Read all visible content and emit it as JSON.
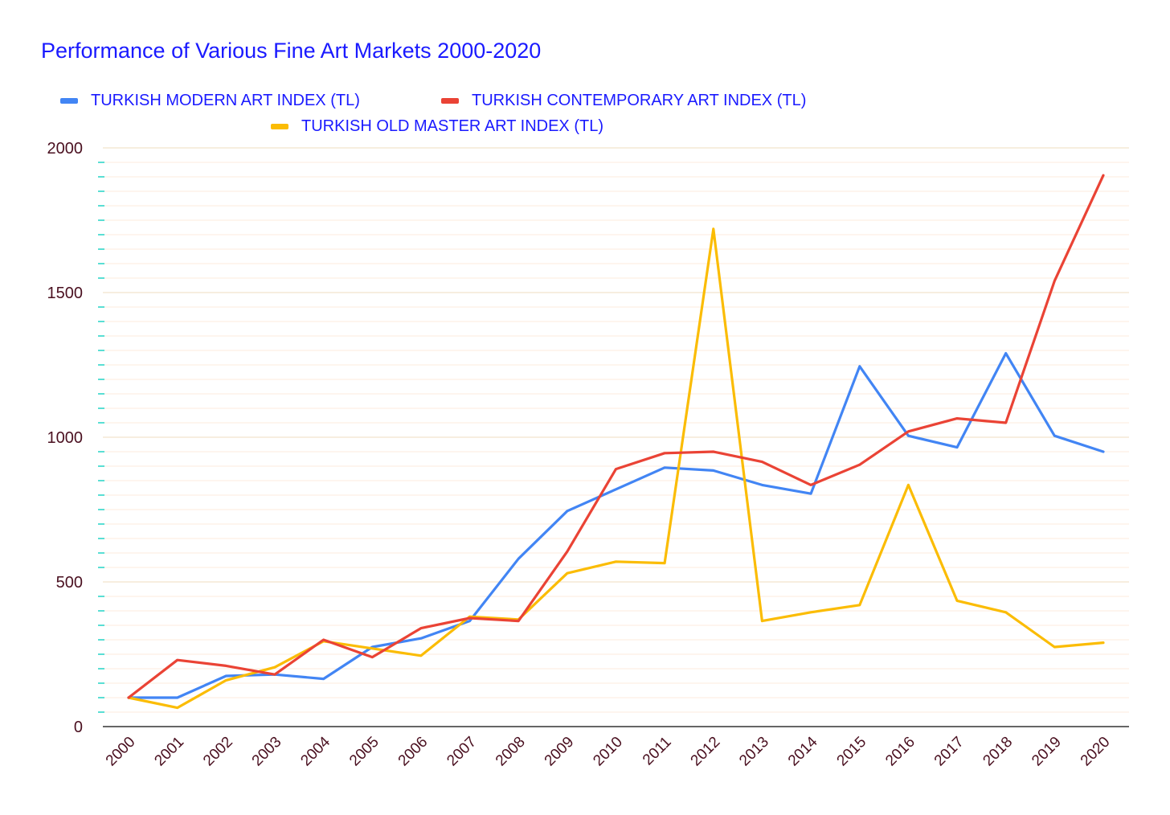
{
  "chart_data": {
    "type": "line",
    "title": "Performance of Various Fine Art Markets 2000-2020",
    "xlabel": "",
    "ylabel": "",
    "ylim": [
      0,
      2000
    ],
    "y_ticks": [
      "0",
      "500",
      "1000",
      "1500",
      "2000"
    ],
    "legend_position": "top",
    "grid": true,
    "categories": [
      "2000",
      "2001",
      "2002",
      "2003",
      "2004",
      "2005",
      "2006",
      "2007",
      "2008",
      "2009",
      "2010",
      "2011",
      "2012",
      "2013",
      "2014",
      "2015",
      "2016",
      "2017",
      "2018",
      "2019",
      "2020"
    ],
    "series": [
      {
        "name": "TURKISH MODERN ART INDEX (TL)",
        "color": "#4285f4",
        "values": [
          100,
          100,
          175,
          180,
          165,
          275,
          305,
          365,
          580,
          745,
          820,
          895,
          885,
          835,
          805,
          1245,
          1005,
          965,
          1290,
          1005,
          950
        ]
      },
      {
        "name": "TURKISH CONTEMPORARY ART INDEX (TL)",
        "color": "#ea4335",
        "values": [
          100,
          230,
          210,
          180,
          300,
          240,
          340,
          375,
          365,
          605,
          890,
          945,
          950,
          915,
          835,
          905,
          1020,
          1065,
          1050,
          1540,
          1905
        ]
      },
      {
        "name": "TURKISH OLD MASTER ART INDEX (TL)",
        "color": "#fbbc04",
        "values": [
          100,
          65,
          160,
          205,
          295,
          270,
          245,
          380,
          370,
          530,
          570,
          565,
          1720,
          365,
          395,
          420,
          835,
          435,
          395,
          275,
          290
        ]
      }
    ]
  }
}
